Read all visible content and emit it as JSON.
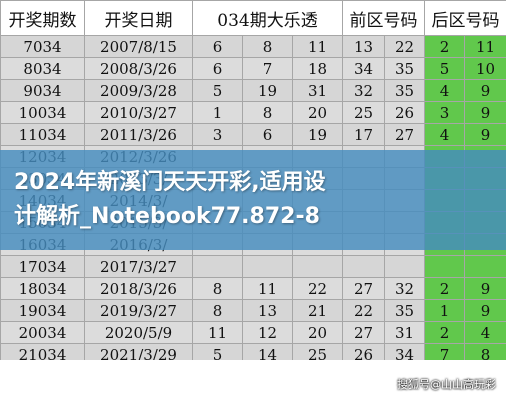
{
  "table": {
    "headers": [
      "开奖期数",
      "开奖日期",
      "034期大乐透",
      "前区号码",
      "后区号码"
    ],
    "rows": [
      {
        "period": "7034",
        "date": "2007/8/15",
        "front": [
          "6",
          "8",
          "11",
          "13",
          "22"
        ],
        "back": [
          "2",
          "11"
        ]
      },
      {
        "period": "8034",
        "date": "2008/3/26",
        "front": [
          "6",
          "7",
          "18",
          "34",
          "35"
        ],
        "back": [
          "5",
          "10"
        ]
      },
      {
        "period": "9034",
        "date": "2009/3/28",
        "front": [
          "5",
          "19",
          "31",
          "32",
          "35"
        ],
        "back": [
          "4",
          "9"
        ]
      },
      {
        "period": "10034",
        "date": "2010/3/27",
        "front": [
          "1",
          "8",
          "20",
          "25",
          "26"
        ],
        "back": [
          "3",
          "9"
        ]
      },
      {
        "period": "11034",
        "date": "2011/3/26",
        "front": [
          "3",
          "6",
          "19",
          "17",
          "27"
        ],
        "back": [
          "4",
          "9"
        ]
      },
      {
        "period": "12034",
        "date": "2012/3/26",
        "front": [
          "",
          "",
          "",
          "",
          ""
        ],
        "back": [
          "",
          ""
        ]
      },
      {
        "period": "13034",
        "date": "2013/3/",
        "front": [
          "",
          "",
          "",
          "",
          ""
        ],
        "back": [
          "",
          ""
        ]
      },
      {
        "period": "14034",
        "date": "2014/3/",
        "front": [
          "",
          "",
          "",
          "",
          ""
        ],
        "back": [
          "",
          ""
        ]
      },
      {
        "period": "15034",
        "date": "2015/3/",
        "front": [
          "",
          "",
          "",
          "",
          ""
        ],
        "back": [
          "",
          ""
        ]
      },
      {
        "period": "16034",
        "date": "2016/3/",
        "front": [
          "",
          "",
          "",
          "",
          ""
        ],
        "back": [
          "",
          ""
        ]
      },
      {
        "period": "17034",
        "date": "2017/3/27",
        "front": [
          "",
          "",
          "",
          "",
          ""
        ],
        "back": [
          "",
          ""
        ]
      },
      {
        "period": "18034",
        "date": "2018/3/26",
        "front": [
          "8",
          "11",
          "22",
          "27",
          "32"
        ],
        "back": [
          "2",
          "9"
        ]
      },
      {
        "period": "19034",
        "date": "2019/3/27",
        "front": [
          "8",
          "13",
          "21",
          "22",
          "35"
        ],
        "back": [
          "1",
          "9"
        ]
      },
      {
        "period": "20034",
        "date": "2020/5/9",
        "front": [
          "11",
          "12",
          "20",
          "27",
          "31"
        ],
        "back": [
          "2",
          "4"
        ]
      },
      {
        "period": "21034",
        "date": "2021/3/29",
        "front": [
          "5",
          "14",
          "25",
          "26",
          "34"
        ],
        "back": [
          "7",
          "8"
        ]
      }
    ]
  },
  "banner": {
    "line1": "2024年新溪门天天开彩,适用设",
    "line2": "计解析_Notebook77.872-8"
  },
  "watermark": "搜狐号@山山高玩彩"
}
